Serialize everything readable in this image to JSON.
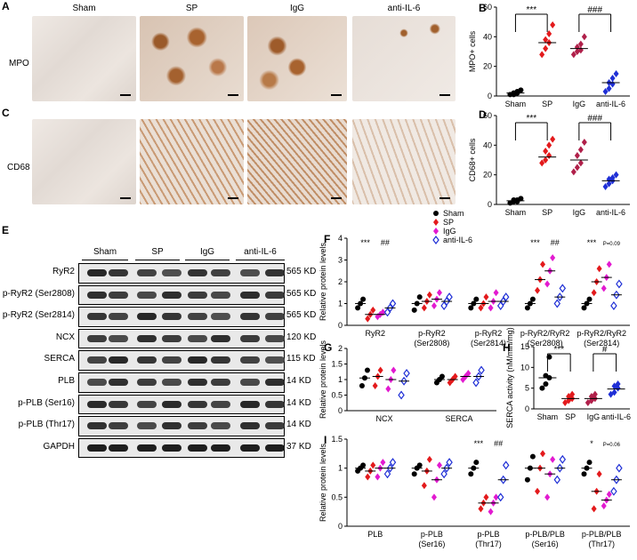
{
  "panels": {
    "A": "A",
    "B": "B",
    "C": "C",
    "D": "D",
    "E": "E",
    "F": "F",
    "G": "G",
    "H": "H",
    "I": "I"
  },
  "histology": {
    "columns": [
      "Sham",
      "SP",
      "IgG",
      "anti-IL-6"
    ],
    "row_labels": [
      "MPO",
      "CD68"
    ]
  },
  "western": {
    "groups": [
      "Sham",
      "SP",
      "IgG",
      "anti-IL-6"
    ],
    "rows": [
      {
        "label": "RyR2",
        "kd": "565 KD"
      },
      {
        "label": "p-RyR2 (Ser2808)",
        "kd": "565 KD"
      },
      {
        "label": "p-RyR2 (Ser2814)",
        "kd": "565 KD"
      },
      {
        "label": "NCX",
        "kd": "120 KD"
      },
      {
        "label": "SERCA",
        "kd": "115 KD"
      },
      {
        "label": "PLB",
        "kd": "14 KD"
      },
      {
        "label": "p-PLB (Ser16)",
        "kd": "14 KD"
      },
      {
        "label": "p-PLB (Thr17)",
        "kd": "14 KD"
      },
      {
        "label": "GAPDH",
        "kd": "37 KD"
      }
    ]
  },
  "legend": {
    "entries": [
      {
        "name": "Sham",
        "color": "#000000"
      },
      {
        "name": "SP",
        "color": "#e31a1c"
      },
      {
        "name": "IgG",
        "color": "#e21ad0"
      },
      {
        "name": "anti-IL-6",
        "color": "#1f2fd6"
      }
    ]
  },
  "chart_data": [
    {
      "id": "B",
      "type": "scatter",
      "ylabel": "MPO+ cells",
      "ylim": [
        0,
        60
      ],
      "yticks": [
        0,
        20,
        40,
        60
      ],
      "categories": [
        "Sham",
        "SP",
        "IgG",
        "anti-IL-6"
      ],
      "colors": [
        "#000000",
        "#e31a1c",
        "#b0204a",
        "#1f2fd6"
      ],
      "series": [
        [
          1,
          2,
          3,
          1,
          2,
          4
        ],
        [
          28,
          32,
          36,
          38,
          42,
          48
        ],
        [
          28,
          30,
          31,
          33,
          35,
          40
        ],
        [
          3,
          5,
          8,
          9,
          12,
          15
        ]
      ],
      "means": [
        2,
        36,
        32,
        9
      ],
      "annotations": [
        {
          "text": "***",
          "from": 0,
          "to": 1
        },
        {
          "text": "###",
          "from": 2,
          "to": 3
        }
      ]
    },
    {
      "id": "D",
      "type": "scatter",
      "ylabel": "CD68+ cells",
      "ylim": [
        0,
        60
      ],
      "yticks": [
        0,
        20,
        40,
        60
      ],
      "categories": [
        "Sham",
        "SP",
        "IgG",
        "anti-IL-6"
      ],
      "colors": [
        "#000000",
        "#e31a1c",
        "#b0204a",
        "#1f2fd6"
      ],
      "series": [
        [
          1,
          2,
          2,
          3,
          3,
          4
        ],
        [
          28,
          30,
          33,
          36,
          40,
          44
        ],
        [
          22,
          25,
          28,
          33,
          37,
          42
        ],
        [
          12,
          14,
          16,
          17,
          18,
          20
        ]
      ],
      "means": [
        2.5,
        32,
        30,
        16
      ],
      "annotations": [
        {
          "text": "***",
          "from": 0,
          "to": 1
        },
        {
          "text": "###",
          "from": 2,
          "to": 3
        }
      ]
    },
    {
      "id": "F",
      "type": "scatter",
      "ylabel": "Relative protein levels",
      "ylim": [
        0,
        4
      ],
      "yticks": [
        0,
        1,
        2,
        3,
        4
      ],
      "categories": [
        "RyR2",
        "p-RyR2\n(Ser2808)",
        "p-RyR2\n(Ser2814)",
        "p-RyR2/RyR2\n(Ser2808)",
        "p-RyR2/RyR2\n(Ser2814)"
      ],
      "series_names": [
        "Sham",
        "SP",
        "IgG",
        "anti-IL-6"
      ],
      "groups": [
        {
          "means": [
            1.0,
            0.5,
            0.5,
            0.8
          ],
          "values": [
            [
              0.8,
              1.0,
              1.2
            ],
            [
              0.3,
              0.5,
              0.7
            ],
            [
              0.4,
              0.5,
              0.6
            ],
            [
              0.6,
              0.8,
              1.0
            ]
          ]
        },
        {
          "means": [
            1.0,
            1.1,
            1.2,
            1.1
          ],
          "values": [
            [
              0.7,
              1.0,
              1.3
            ],
            [
              0.8,
              1.1,
              1.4
            ],
            [
              0.9,
              1.2,
              1.5
            ],
            [
              0.9,
              1.1,
              1.3
            ]
          ]
        },
        {
          "means": [
            1.0,
            1.0,
            1.1,
            1.1
          ],
          "values": [
            [
              0.8,
              1.0,
              1.2
            ],
            [
              0.8,
              1.0,
              1.3
            ],
            [
              0.8,
              1.1,
              1.5
            ],
            [
              0.9,
              1.1,
              1.3
            ]
          ]
        },
        {
          "means": [
            1.0,
            2.1,
            2.5,
            1.3
          ],
          "values": [
            [
              0.8,
              1.0,
              1.2
            ],
            [
              1.6,
              2.1,
              2.8
            ],
            [
              1.9,
              2.5,
              3.1
            ],
            [
              1.0,
              1.3,
              1.7
            ]
          ]
        },
        {
          "means": [
            1.0,
            2.0,
            2.2,
            1.4
          ],
          "values": [
            [
              0.8,
              1.0,
              1.2
            ],
            [
              1.5,
              2.0,
              2.6
            ],
            [
              1.7,
              2.2,
              2.8
            ],
            [
              0.9,
              1.4,
              1.9
            ]
          ]
        }
      ],
      "annotations": [
        {
          "group": 0,
          "left": "***",
          "right": "##"
        },
        {
          "group": 3,
          "left": "***",
          "right": "##"
        },
        {
          "group": 4,
          "left": "***",
          "right": "P=0.09"
        }
      ]
    },
    {
      "id": "G",
      "type": "scatter",
      "ylabel": "Relative protein levels",
      "ylim": [
        0,
        2
      ],
      "yticks": [
        0,
        0.5,
        1.0,
        1.5,
        2.0
      ],
      "categories": [
        "NCX",
        "SERCA"
      ],
      "series_names": [
        "Sham",
        "SP",
        "IgG",
        "anti-IL-6"
      ],
      "groups": [
        {
          "means": [
            1.05,
            1.1,
            1.0,
            0.95
          ],
          "values": [
            [
              0.8,
              1.05,
              1.3
            ],
            [
              0.8,
              1.1,
              1.3
            ],
            [
              0.7,
              1.0,
              1.3
            ],
            [
              0.5,
              0.95,
              1.2
            ]
          ]
        },
        {
          "means": [
            1.0,
            1.0,
            1.1,
            1.1
          ],
          "values": [
            [
              0.9,
              1.0,
              1.1
            ],
            [
              0.9,
              1.0,
              1.1
            ],
            [
              1.0,
              1.1,
              1.2
            ],
            [
              0.9,
              1.1,
              1.3
            ]
          ]
        }
      ],
      "annotations": []
    },
    {
      "id": "H",
      "type": "scatter",
      "ylabel": "SERCA activity (nM/min/mg)",
      "ylim": [
        0,
        15
      ],
      "yticks": [
        0,
        5,
        10,
        15
      ],
      "categories": [
        "Sham",
        "SP",
        "IgG",
        "anti-IL-6"
      ],
      "colors": [
        "#000000",
        "#e31a1c",
        "#b0204a",
        "#1f2fd6"
      ],
      "series": [
        [
          5,
          6,
          7.5,
          8,
          12.5
        ],
        [
          1.5,
          2,
          2.5,
          3,
          3.5
        ],
        [
          1.5,
          2,
          2.5,
          3,
          3.5
        ],
        [
          3.5,
          4,
          5,
          5.5,
          6
        ]
      ],
      "means": [
        7.5,
        2.5,
        2.5,
        4.8
      ],
      "annotations": [
        {
          "text": "***",
          "from": 0,
          "to": 1
        },
        {
          "text": "#",
          "from": 2,
          "to": 3
        }
      ]
    },
    {
      "id": "I",
      "type": "scatter",
      "ylabel": "Relative protein levels",
      "ylim": [
        0,
        1.5
      ],
      "yticks": [
        0,
        0.5,
        1.0,
        1.5
      ],
      "categories": [
        "PLB",
        "p-PLB\n(Ser16)",
        "p-PLB\n(Thr17)",
        "p-PLB/PLB\n(Ser16)",
        "p-PLB/PLB\n(Thr17)"
      ],
      "series_names": [
        "Sham",
        "SP",
        "IgG",
        "anti-IL-6"
      ],
      "groups": [
        {
          "means": [
            1.0,
            0.95,
            1.0,
            1.0
          ],
          "values": [
            [
              0.95,
              1.0,
              1.05
            ],
            [
              0.85,
              0.95,
              1.05
            ],
            [
              0.85,
              1.0,
              1.1
            ],
            [
              0.9,
              1.0,
              1.1
            ]
          ]
        },
        {
          "means": [
            1.0,
            0.95,
            0.8,
            1.0
          ],
          "values": [
            [
              0.9,
              1.0,
              1.05
            ],
            [
              0.7,
              0.95,
              1.15
            ],
            [
              0.5,
              0.8,
              1.05
            ],
            [
              0.9,
              1.0,
              1.1
            ]
          ]
        },
        {
          "means": [
            1.0,
            0.4,
            0.4,
            0.8
          ],
          "values": [
            [
              0.9,
              1.0,
              1.1
            ],
            [
              0.3,
              0.4,
              0.5
            ],
            [
              0.25,
              0.4,
              0.5
            ],
            [
              0.5,
              0.8,
              1.05
            ]
          ]
        },
        {
          "means": [
            1.0,
            1.0,
            0.9,
            1.0
          ],
          "values": [
            [
              0.8,
              1.0,
              1.2
            ],
            [
              0.6,
              1.0,
              1.25
            ],
            [
              0.5,
              0.9,
              1.15
            ],
            [
              0.8,
              1.0,
              1.15
            ]
          ]
        },
        {
          "means": [
            1.0,
            0.6,
            0.45,
            0.8
          ],
          "values": [
            [
              0.9,
              1.0,
              1.1
            ],
            [
              0.3,
              0.6,
              0.9
            ],
            [
              0.35,
              0.45,
              0.55
            ],
            [
              0.6,
              0.8,
              1.0
            ]
          ]
        }
      ],
      "annotations": [
        {
          "group": 2,
          "left": "***",
          "right": "##"
        },
        {
          "group": 4,
          "left": "*",
          "right": "P=0.06"
        }
      ]
    }
  ]
}
